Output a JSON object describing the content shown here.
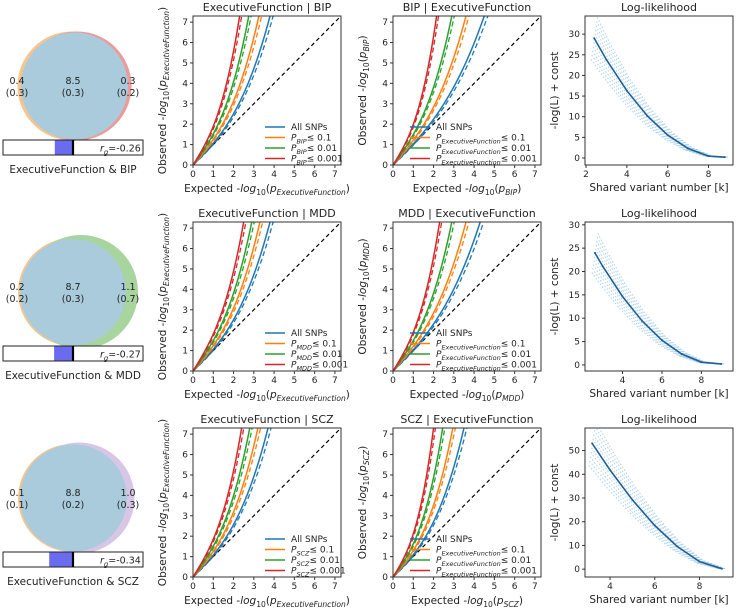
{
  "rows": [
    {
      "venn": {
        "left": "0.4",
        "left_sd": "(0.3)",
        "shared": "8.5",
        "shared_sd": "(0.3)",
        "right": "0.3",
        "right_sd": "(0.2)",
        "rg_symbol": "r",
        "rg_sub": "g",
        "rg_text": "=-0.26",
        "rg": -0.26,
        "caption": "ExecutiveFunction & BIP",
        "left_color": "#f6c58f",
        "right_color": "#ee9a9a",
        "shared_color": "#a9cbdb"
      }
    },
    {
      "venn": {
        "left": "0.2",
        "left_sd": "(0.2)",
        "shared": "8.7",
        "shared_sd": "(0.3)",
        "right": "1.1",
        "right_sd": "(0.7)",
        "rg_symbol": "r",
        "rg_sub": "g",
        "rg_text": "=-0.27",
        "rg": -0.27,
        "caption": "ExecutiveFunction & MDD",
        "left_color": "#f6c58f",
        "right_color": "#a8d59e",
        "shared_color": "#a9cbdb"
      }
    },
    {
      "venn": {
        "left": "0.1",
        "left_sd": "(0.1)",
        "shared": "8.8",
        "shared_sd": "(0.2)",
        "right": "1.0",
        "right_sd": "(0.3)",
        "rg_symbol": "r",
        "rg_sub": "g",
        "rg_text": "=-0.34",
        "rg": -0.34,
        "caption": "ExecutiveFunction & SCZ",
        "left_color": "#f6c58f",
        "right_color": "#d8c6e6",
        "shared_color": "#a9cbdb"
      }
    }
  ],
  "colors": {
    "all": "#1f77b4",
    "p01": "#ff7f0e",
    "p001": "#2ca02c",
    "p0001": "#d62728",
    "ll_main": "#1f5f96",
    "ll_ens": "#6aaedc"
  },
  "chart_data": [
    {
      "type": "line",
      "kind": "qq",
      "title": "ExecutiveFunction | BIP",
      "xlabel_prefix": "Expected -",
      "ylabel_prefix": "Observed -",
      "log": "log",
      "base": "10",
      "p": "p",
      "x_trait": "ExecutiveFunction",
      "y_trait": "ExecutiveFunction",
      "xlim": [
        0,
        7.3
      ],
      "ylim": [
        0,
        7.3
      ],
      "ticks": [
        "0",
        "1",
        "2",
        "3",
        "4",
        "5",
        "6",
        "7"
      ],
      "series": [
        {
          "name": "All SNPs",
          "x_at_y_max": 3.8
        },
        {
          "cond": "BIP",
          "name": "≤ 0.1",
          "x_at_y_max": 3.25
        },
        {
          "cond": "BIP",
          "name": "≤ 0.01",
          "x_at_y_max": 2.75
        },
        {
          "cond": "BIP",
          "name": "≤ 0.001",
          "x_at_y_max": 2.3
        }
      ],
      "legend_symbol": "P"
    },
    {
      "type": "line",
      "kind": "qq",
      "title": "BIP | ExecutiveFunction",
      "xlabel_prefix": "Expected -",
      "ylabel_prefix": "Observed -",
      "log": "log",
      "base": "10",
      "p": "p",
      "x_trait": "BIP",
      "y_trait": "BIP",
      "xlim": [
        0,
        7.3
      ],
      "ylim": [
        0,
        7.3
      ],
      "ticks": [
        "0",
        "1",
        "2",
        "3",
        "4",
        "5",
        "6",
        "7"
      ],
      "series": [
        {
          "name": "All SNPs",
          "x_at_y_max": 4.5
        },
        {
          "cond": "ExecutiveFunction",
          "name": "≤ 0.1",
          "x_at_y_max": 3.6
        },
        {
          "cond": "ExecutiveFunction",
          "name": "≤ 0.01",
          "x_at_y_max": 2.9
        },
        {
          "cond": "ExecutiveFunction",
          "name": "≤ 0.001",
          "x_at_y_max": 2.15
        }
      ],
      "legend_symbol": "P"
    },
    {
      "type": "line",
      "kind": "ll",
      "title": "Log-likelihood",
      "xlabel": "Shared variant number [k]",
      "ylabel": "-log(L) + const",
      "xlim": [
        1.95,
        9.2
      ],
      "ylim": [
        -1.7,
        34.4
      ],
      "xticks": [
        2,
        4,
        6,
        8
      ],
      "yticks": [
        0,
        5,
        10,
        15,
        20,
        25,
        30
      ],
      "x": [
        2.4,
        3,
        4,
        5,
        6,
        7,
        8,
        8.8
      ],
      "y": [
        29.0,
        23.8,
        16.3,
        10.2,
        5.55,
        2.29,
        0.45,
        0.2
      ]
    },
    {
      "type": "line",
      "kind": "qq",
      "title": "ExecutiveFunction | MDD",
      "xlabel_prefix": "Expected -",
      "ylabel_prefix": "Observed -",
      "log": "log",
      "base": "10",
      "p": "p",
      "x_trait": "ExecutiveFunction",
      "y_trait": "ExecutiveFunction",
      "xlim": [
        0,
        7.3
      ],
      "ylim": [
        0,
        7.3
      ],
      "ticks": [
        "0",
        "1",
        "2",
        "3",
        "4",
        "5",
        "6",
        "7"
      ],
      "series": [
        {
          "name": "All SNPs",
          "x_at_y_max": 3.8
        },
        {
          "cond": "MDD",
          "name": "≤ 0.1",
          "x_at_y_max": 3.3
        },
        {
          "cond": "MDD",
          "name": "≤ 0.01",
          "x_at_y_max": 2.9
        },
        {
          "cond": "MDD",
          "name": "≤ 0.001",
          "x_at_y_max": 2.5
        }
      ],
      "legend_symbol": "P"
    },
    {
      "type": "line",
      "kind": "qq",
      "title": "MDD | ExecutiveFunction",
      "xlabel_prefix": "Expected -",
      "ylabel_prefix": "Observed -",
      "log": "log",
      "base": "10",
      "p": "p",
      "x_trait": "MDD",
      "y_trait": "MDD",
      "xlim": [
        0,
        7.3
      ],
      "ylim": [
        0,
        7.3
      ],
      "ticks": [
        "0",
        "1",
        "2",
        "3",
        "4",
        "5",
        "6",
        "7"
      ],
      "series": [
        {
          "name": "All SNPs",
          "x_at_y_max": 4.3
        },
        {
          "cond": "ExecutiveFunction",
          "name": "≤ 0.1",
          "x_at_y_max": 3.6
        },
        {
          "cond": "ExecutiveFunction",
          "name": "≤ 0.01",
          "x_at_y_max": 2.9
        },
        {
          "cond": "ExecutiveFunction",
          "name": "≤ 0.001",
          "x_at_y_max": 2.3
        }
      ],
      "legend_symbol": "P"
    },
    {
      "type": "line",
      "kind": "ll",
      "title": "Log-likelihood",
      "xlabel": "Shared variant number [k]",
      "ylabel": "-log(L) + const",
      "xlim": [
        2.1,
        9.6
      ],
      "ylim": [
        -1.3,
        30.6
      ],
      "xticks": [
        4,
        6,
        8
      ],
      "yticks": [
        0,
        5,
        10,
        15,
        20,
        25,
        30
      ],
      "x": [
        2.6,
        3,
        4,
        5,
        6,
        7,
        8,
        9
      ],
      "y": [
        24.0,
        21.1,
        14.65,
        9.38,
        5.27,
        2.34,
        0.59,
        0.2
      ]
    },
    {
      "type": "line",
      "kind": "qq",
      "title": "ExecutiveFunction | SCZ",
      "xlabel_prefix": "Expected -",
      "ylabel_prefix": "Observed -",
      "log": "log",
      "base": "10",
      "p": "p",
      "x_trait": "ExecutiveFunction",
      "y_trait": "ExecutiveFunction",
      "xlim": [
        0,
        7.3
      ],
      "ylim": [
        0,
        7.3
      ],
      "ticks": [
        "0",
        "1",
        "2",
        "3",
        "4",
        "5",
        "6",
        "7"
      ],
      "series": [
        {
          "name": "All SNPs",
          "x_at_y_max": 3.7
        },
        {
          "cond": "SCZ",
          "name": "≤ 0.1",
          "x_at_y_max": 3.2
        },
        {
          "cond": "SCZ",
          "name": "≤ 0.01",
          "x_at_y_max": 2.8
        },
        {
          "cond": "SCZ",
          "name": "≤ 0.001",
          "x_at_y_max": 2.4
        }
      ],
      "legend_symbol": "P"
    },
    {
      "type": "line",
      "kind": "qq",
      "title": "SCZ | ExecutiveFunction",
      "xlabel_prefix": "Expected -",
      "ylabel_prefix": "Observed -",
      "log": "log",
      "base": "10",
      "p": "p",
      "x_trait": "SCZ",
      "y_trait": "SCZ",
      "xlim": [
        0,
        7.3
      ],
      "ylim": [
        0,
        7.3
      ],
      "ticks": [
        "0",
        "1",
        "2",
        "3",
        "4",
        "5",
        "6",
        "7"
      ],
      "series": [
        {
          "name": "All SNPs",
          "x_at_y_max": 3.5
        },
        {
          "cond": "ExecutiveFunction",
          "name": "≤ 0.1",
          "x_at_y_max": 2.95
        },
        {
          "cond": "ExecutiveFunction",
          "name": "≤ 0.01",
          "x_at_y_max": 2.45
        },
        {
          "cond": "ExecutiveFunction",
          "name": "≤ 0.001",
          "x_at_y_max": 2.0
        }
      ],
      "legend_symbol": "P"
    },
    {
      "type": "line",
      "kind": "ll",
      "title": "Log-likelihood",
      "xlabel": "Shared variant number [k]",
      "ylabel": "-log(L) + const",
      "xlim": [
        2.88,
        9.5
      ],
      "ylim": [
        -3.3,
        59.5
      ],
      "xticks": [
        4,
        6,
        8
      ],
      "yticks": [
        0,
        10,
        20,
        30,
        40,
        50
      ],
      "x": [
        3.2,
        4,
        5,
        6,
        7,
        8,
        9
      ],
      "y": [
        53.0,
        41.8,
        29.2,
        18.4,
        9.6,
        3.2,
        0.2
      ]
    }
  ]
}
